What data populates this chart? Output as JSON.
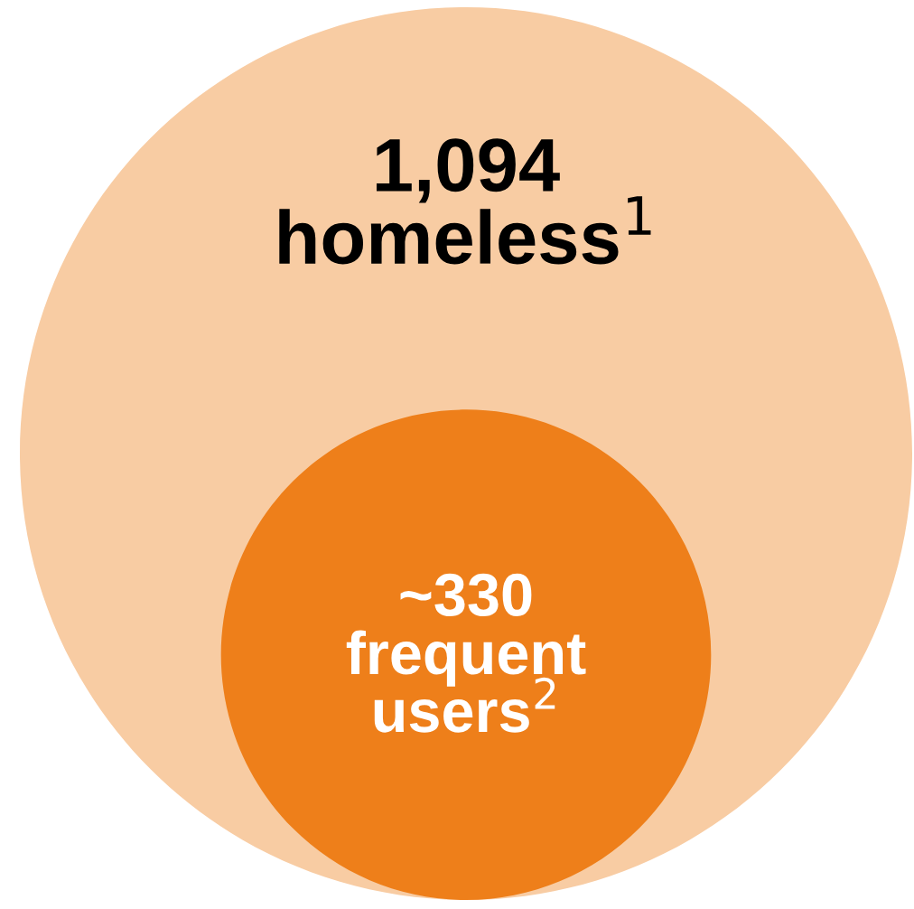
{
  "chart_data": {
    "type": "other",
    "categories": [
      "homeless$^{1}$",
      "frequent users$^{2}$"
    ],
    "values": [
      1094,
      330
    ],
    "value_labels": [
      "1,094",
      "~330"
    ],
    "colors": [
      "#f8cca3",
      "#ee7f1a"
    ]
  }
}
